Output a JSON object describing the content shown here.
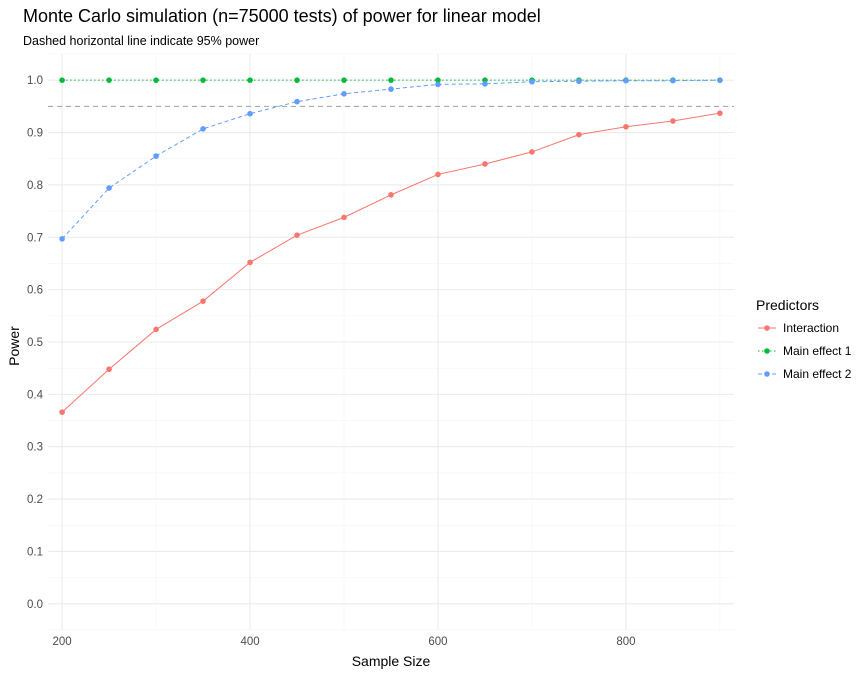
{
  "chart_data": {
    "type": "line",
    "title": "Monte Carlo simulation (n=75000 tests) of power for linear model",
    "subtitle": "Dashed horizontal line indicate 95% power",
    "xlabel": "Sample Size",
    "ylabel": "Power",
    "xlim": [
      185,
      915
    ],
    "ylim": [
      -0.05,
      1.05
    ],
    "x_ticks": [
      200,
      400,
      600,
      800
    ],
    "y_ticks": [
      0.0,
      0.1,
      0.2,
      0.3,
      0.4,
      0.5,
      0.6,
      0.7,
      0.8,
      0.9,
      1.0
    ],
    "y_tick_labels": [
      "0.0",
      "0.1",
      "0.2",
      "0.3",
      "0.4",
      "0.5",
      "0.6",
      "0.7",
      "0.8",
      "0.9",
      "1.0"
    ],
    "grid": true,
    "legend": {
      "title": "Predictors",
      "position": "right"
    },
    "reference_line": {
      "y": 0.95,
      "style": "dashed",
      "color": "#a0a0a0"
    },
    "x": [
      200,
      250,
      300,
      350,
      400,
      450,
      500,
      550,
      600,
      650,
      700,
      750,
      800,
      850,
      900
    ],
    "series": [
      {
        "name": "Interaction",
        "color": "#F8766D",
        "dash": "solid",
        "values": [
          0.366,
          0.448,
          0.524,
          0.578,
          0.652,
          0.704,
          0.738,
          0.781,
          0.82,
          0.84,
          0.863,
          0.896,
          0.911,
          0.922,
          0.937
        ]
      },
      {
        "name": "Main effect 1",
        "color": "#00BA38",
        "dash": "dotted",
        "values": [
          1.0,
          1.0,
          1.0,
          1.0,
          1.0,
          1.0,
          1.0,
          1.0,
          1.0,
          1.0,
          1.0,
          1.0,
          1.0,
          1.0,
          1.0
        ]
      },
      {
        "name": "Main effect 2",
        "color": "#619CFF",
        "dash": "dashed",
        "values": [
          0.697,
          0.794,
          0.855,
          0.907,
          0.936,
          0.959,
          0.974,
          0.983,
          0.992,
          0.993,
          0.997,
          0.998,
          0.999,
          0.999,
          1.0
        ]
      }
    ]
  }
}
